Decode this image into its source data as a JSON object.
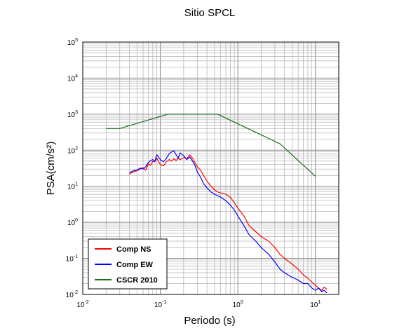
{
  "chart_data": {
    "type": "line",
    "title": "Sitio SPCL",
    "xlabel": "Periodo (s)",
    "ylabel": "PSA(cm/s²)",
    "x_scale": "log",
    "y_scale": "log",
    "xlim": [
      0.01,
      20
    ],
    "ylim": [
      0.01,
      100000
    ],
    "grid": true,
    "legend_position": "bottom-left",
    "x_ticks": [
      {
        "base": "10",
        "exp": "-2"
      },
      {
        "base": "10",
        "exp": "-1"
      },
      {
        "base": "10",
        "exp": "0"
      },
      {
        "base": "10",
        "exp": "1"
      }
    ],
    "y_ticks": [
      {
        "base": "10",
        "exp": "-2"
      },
      {
        "base": "10",
        "exp": "-1"
      },
      {
        "base": "10",
        "exp": "0"
      },
      {
        "base": "10",
        "exp": "1"
      },
      {
        "base": "10",
        "exp": "2"
      },
      {
        "base": "10",
        "exp": "3"
      },
      {
        "base": "10",
        "exp": "4"
      },
      {
        "base": "10",
        "exp": "5"
      }
    ],
    "series": [
      {
        "name": "Comp NS",
        "color": "#ff0000",
        "x": [
          0.04,
          0.045,
          0.05,
          0.055,
          0.06,
          0.065,
          0.07,
          0.075,
          0.08,
          0.085,
          0.09,
          0.1,
          0.11,
          0.12,
          0.13,
          0.14,
          0.15,
          0.16,
          0.17,
          0.18,
          0.2,
          0.22,
          0.24,
          0.26,
          0.28,
          0.3,
          0.33,
          0.36,
          0.4,
          0.45,
          0.5,
          0.55,
          0.6,
          0.7,
          0.8,
          0.9,
          1.0,
          1.2,
          1.4,
          1.7,
          2.0,
          2.5,
          3.0,
          3.5,
          4.0,
          5.0,
          6.0,
          7.0,
          8.0,
          9.0,
          10.0,
          11.0,
          12.0,
          13.0,
          14.0
        ],
        "y": [
          22,
          25,
          27,
          30,
          33,
          28,
          42,
          38,
          50,
          48,
          60,
          40,
          37,
          48,
          55,
          50,
          58,
          52,
          60,
          55,
          62,
          58,
          75,
          60,
          45,
          35,
          28,
          20,
          14,
          10,
          8,
          7,
          6.5,
          6,
          5,
          3.5,
          2.5,
          1.5,
          0.8,
          0.55,
          0.4,
          0.3,
          0.2,
          0.13,
          0.1,
          0.07,
          0.05,
          0.035,
          0.028,
          0.022,
          0.018,
          0.015,
          0.013,
          0.016,
          0.014
        ]
      },
      {
        "name": "Comp EW",
        "color": "#0000ff",
        "x": [
          0.04,
          0.045,
          0.05,
          0.055,
          0.06,
          0.065,
          0.07,
          0.075,
          0.08,
          0.085,
          0.09,
          0.1,
          0.11,
          0.12,
          0.13,
          0.14,
          0.15,
          0.16,
          0.17,
          0.18,
          0.2,
          0.22,
          0.24,
          0.26,
          0.28,
          0.3,
          0.33,
          0.36,
          0.4,
          0.45,
          0.5,
          0.55,
          0.6,
          0.7,
          0.8,
          0.9,
          1.0,
          1.2,
          1.4,
          1.7,
          2.0,
          2.5,
          3.0,
          3.5,
          4.0,
          5.0,
          6.0,
          7.0,
          8.0,
          9.0,
          10.0,
          11.0,
          12.0,
          13.0,
          14.0
        ],
        "y": [
          24,
          27,
          28,
          32,
          30,
          35,
          45,
          52,
          55,
          48,
          75,
          55,
          48,
          60,
          80,
          90,
          95,
          75,
          60,
          85,
          70,
          55,
          65,
          50,
          38,
          25,
          18,
          12,
          9,
          7,
          6,
          5.5,
          5,
          4,
          3,
          2.2,
          1.5,
          0.8,
          0.45,
          0.3,
          0.2,
          0.13,
          0.08,
          0.05,
          0.04,
          0.03,
          0.025,
          0.02,
          0.02,
          0.015,
          0.013,
          0.015,
          0.012,
          0.013,
          0.011
        ]
      },
      {
        "name": "CSCR 2010",
        "color": "#1f6b1f",
        "x": [
          0.02,
          0.03,
          0.125,
          0.55,
          3.5,
          10.0
        ],
        "y": [
          400,
          400,
          1000,
          1000,
          150,
          19
        ]
      }
    ]
  }
}
